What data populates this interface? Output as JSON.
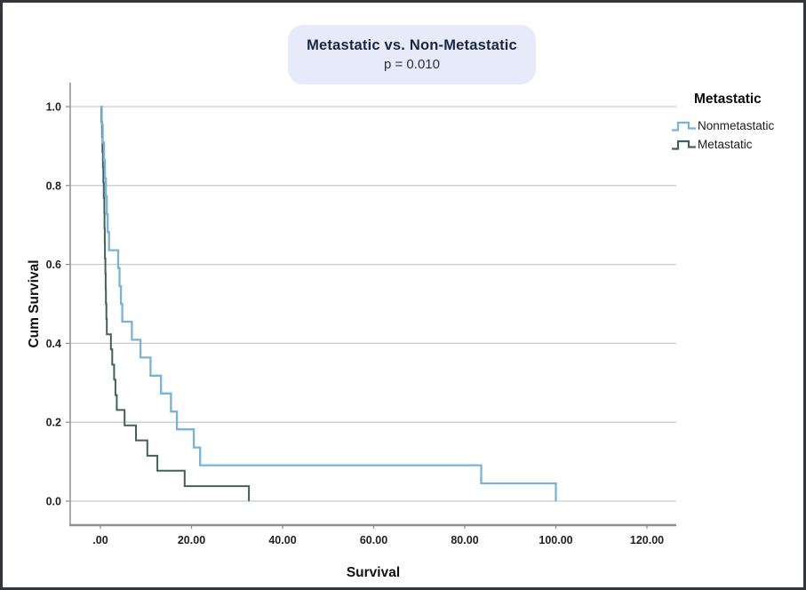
{
  "page": {
    "background": "#ffffff",
    "border_color": "#34353a"
  },
  "header": {
    "title": "Metastatic vs. Non-Metastatic",
    "p_value": "p = 0.010",
    "box_color": "#e7ebf9"
  },
  "legend": {
    "title": "Metastatic",
    "entries": [
      {
        "label": "Nonmetastatic",
        "color": "#79b2da"
      },
      {
        "label": "Metastatic",
        "color": "#40625b"
      }
    ]
  },
  "chart_data": {
    "type": "line",
    "subtype": "kaplan-meier-step-survival",
    "title": "Metastatic vs. Non-Metastatic",
    "p_value": 0.01,
    "xlabel": "Survival",
    "ylabel": "Cum Survival",
    "xlim": [
      -6.6,
      126.4
    ],
    "ylim": [
      0.0,
      1.0
    ],
    "x_ticks": [
      0,
      20,
      40,
      60,
      80,
      100,
      120
    ],
    "x_tick_labels": [
      ".00",
      "20.00",
      "40.00",
      "60.00",
      "80.00",
      "100.00",
      "120.00"
    ],
    "y_ticks": [
      0.0,
      0.2,
      0.4,
      0.6,
      0.8,
      1.0
    ],
    "y_tick_labels": [
      "0.0",
      "0.2",
      "0.4",
      "0.6",
      "0.8",
      "1.0"
    ],
    "grid": "horizontal",
    "grid_color": "#c9c9c9",
    "axis_color": "#8f8f8f",
    "tick_label_color": "#1f1f1f",
    "legend_position": "right",
    "series": [
      {
        "name": "Nonmetastatic",
        "color": "#79b2da",
        "start": [
          0,
          1.0
        ],
        "steps": [
          [
            0.3,
            0.955
          ],
          [
            0.5,
            0.909
          ],
          [
            0.8,
            0.864
          ],
          [
            1.0,
            0.818
          ],
          [
            1.2,
            0.773
          ],
          [
            1.4,
            0.727
          ],
          [
            1.6,
            0.682
          ],
          [
            1.9,
            0.636
          ],
          [
            3.9,
            0.591
          ],
          [
            4.2,
            0.545
          ],
          [
            4.5,
            0.5
          ],
          [
            4.8,
            0.455
          ],
          [
            6.9,
            0.409
          ],
          [
            8.8,
            0.364
          ],
          [
            11.0,
            0.318
          ],
          [
            13.3,
            0.273
          ],
          [
            15.5,
            0.227
          ],
          [
            16.8,
            0.182
          ],
          [
            20.5,
            0.136
          ],
          [
            21.9,
            0.091
          ],
          [
            83.6,
            0.045
          ],
          [
            100.0,
            0.0
          ]
        ]
      },
      {
        "name": "Metastatic",
        "color": "#40625b",
        "start": [
          0,
          1.0
        ],
        "steps": [
          [
            0.2,
            0.962
          ],
          [
            0.35,
            0.923
          ],
          [
            0.45,
            0.885
          ],
          [
            0.55,
            0.846
          ],
          [
            0.65,
            0.808
          ],
          [
            0.75,
            0.769
          ],
          [
            0.85,
            0.731
          ],
          [
            0.9,
            0.692
          ],
          [
            0.95,
            0.654
          ],
          [
            1.0,
            0.615
          ],
          [
            1.1,
            0.577
          ],
          [
            1.15,
            0.538
          ],
          [
            1.2,
            0.5
          ],
          [
            1.3,
            0.462
          ],
          [
            1.4,
            0.423
          ],
          [
            2.3,
            0.385
          ],
          [
            2.6,
            0.346
          ],
          [
            3.0,
            0.308
          ],
          [
            3.3,
            0.269
          ],
          [
            3.6,
            0.231
          ],
          [
            5.3,
            0.192
          ],
          [
            7.8,
            0.154
          ],
          [
            10.3,
            0.115
          ],
          [
            12.5,
            0.077
          ],
          [
            18.5,
            0.038
          ],
          [
            32.6,
            0.0
          ]
        ]
      }
    ]
  }
}
